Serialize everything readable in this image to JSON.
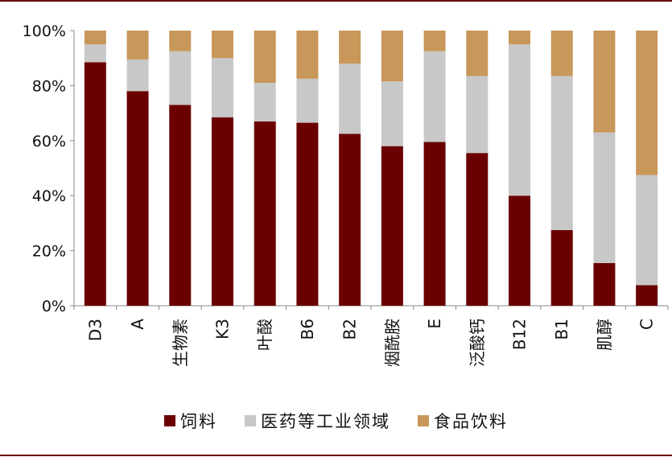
{
  "chart_data": {
    "type": "bar",
    "stacked": true,
    "categories": [
      "D3",
      "A",
      "生物素",
      "K3",
      "叶酸",
      "B6",
      "B2",
      "烟酰胺",
      "E",
      "泛酸钙",
      "B12",
      "B1",
      "肌醇",
      "C"
    ],
    "series": [
      {
        "name": "饲料",
        "color": "#6b0000",
        "values": [
          88.5,
          78,
          73,
          68.5,
          67,
          66.5,
          62.5,
          58,
          59.5,
          55.5,
          40,
          27.5,
          15.5,
          7.5
        ]
      },
      {
        "name": "医药等工业领域",
        "color": "#c8c8c8",
        "values": [
          6.5,
          11.5,
          19.5,
          21.5,
          14,
          16,
          25.5,
          23.5,
          33,
          28,
          55,
          56,
          47.5,
          40
        ]
      },
      {
        "name": "食品饮料",
        "color": "#c8975a",
        "values": [
          5,
          10.5,
          7.5,
          10,
          19,
          17.5,
          12,
          18.5,
          7.5,
          16.5,
          5,
          16.5,
          37,
          52.5
        ]
      }
    ],
    "yticks": [
      "0%",
      "20%",
      "40%",
      "60%",
      "80%",
      "100%"
    ],
    "ylim": [
      0,
      100
    ],
    "title": "",
    "xlabel": "",
    "ylabel": "",
    "legend_position": "bottom"
  },
  "frame_color": "#6b0000"
}
